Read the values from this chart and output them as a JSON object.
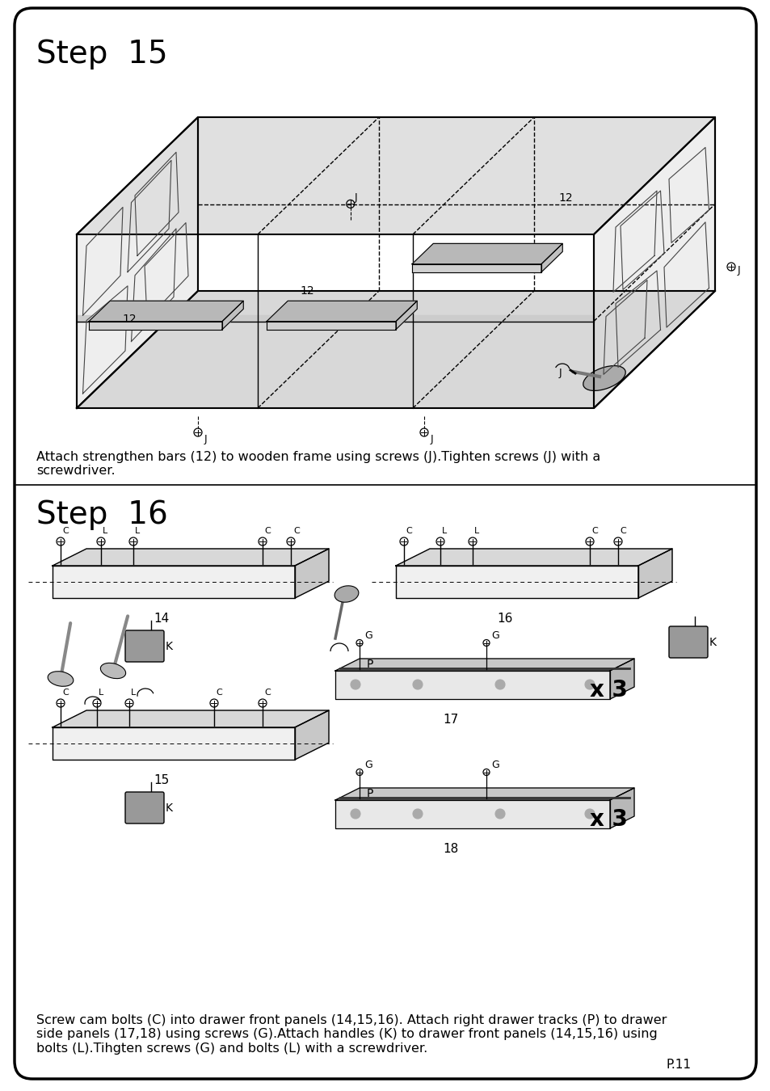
{
  "page_bg": "#ffffff",
  "border_color": "#000000",
  "border_lw": 2.5,
  "step15_title": "Step  15",
  "step15_desc": "Attach strengthen bars (12) to wooden frame using screws (J).Tighten screws (J) with a\nscrewdriver.",
  "step16_title": "Step  16",
  "step16_desc": "Screw cam bolts (C) into drawer front panels (14,15,16). Attach right drawer tracks (P) to drawer\nside panels (17,18) using screws (G).Attach handles (K) to drawer front panels (14,15,16) using\nbolts (L).Tihgten screws (G) and bolts (L) with a screwdriver.",
  "page_num": "P.11",
  "title_fontsize": 28,
  "desc_fontsize": 11.5,
  "pagenum_fontsize": 11
}
